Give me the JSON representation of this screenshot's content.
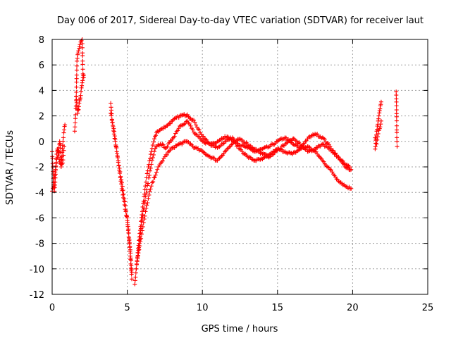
{
  "chart_data": {
    "type": "scatter",
    "title": "Day 006 of 2017, Sidereal Day-to-day VTEC variation (SDTVAR) for receiver laut",
    "xlabel": "GPS time / hours",
    "ylabel": "SDTVAR / TECUs",
    "xlim": [
      0,
      25
    ],
    "ylim": [
      -12,
      8
    ],
    "xticks": [
      0,
      5,
      10,
      15,
      20,
      25
    ],
    "yticks": [
      -12,
      -10,
      -8,
      -6,
      -4,
      -2,
      0,
      2,
      4,
      6,
      8
    ],
    "grid": true,
    "marker": "+",
    "color": "#ff0000",
    "series": [
      {
        "name": "seg1",
        "x": [
          0.0,
          0.05,
          0.1,
          0.15,
          0.2,
          0.25,
          0.3,
          0.35,
          0.4,
          0.45,
          0.5,
          0.55,
          0.6,
          0.65,
          0.7,
          0.75,
          0.8,
          0.85
        ],
        "y": [
          -0.8,
          -2.0,
          -3.5,
          -3.9,
          -3.2,
          -2.0,
          -1.0,
          -0.6,
          -0.9,
          -0.5,
          0.0,
          -0.3,
          -1.8,
          -1.2,
          -0.3,
          0.3,
          0.9,
          1.3
        ]
      },
      {
        "name": "seg2",
        "x": [
          0.0,
          0.1,
          0.2,
          0.3,
          0.4,
          0.5,
          0.6,
          0.7,
          0.8
        ],
        "y": [
          -3.9,
          -3.4,
          -2.4,
          -1.4,
          -1.0,
          -1.6,
          -2.0,
          -1.7,
          -0.4
        ]
      },
      {
        "name": "seg3",
        "x": [
          1.5,
          1.55,
          1.6,
          1.65,
          1.7,
          1.75,
          1.8,
          1.85,
          1.9,
          1.95,
          2.0,
          2.05,
          2.1
        ],
        "y": [
          0.8,
          1.8,
          3.2,
          6.3,
          6.8,
          7.1,
          7.3,
          7.6,
          7.8,
          7.9,
          8.0,
          5.3,
          5.0
        ]
      },
      {
        "name": "seg4",
        "x": [
          1.6,
          1.65,
          1.7,
          1.75,
          1.8,
          1.85,
          1.9,
          1.95,
          2.0,
          2.05,
          2.1
        ],
        "y": [
          3.5,
          2.8,
          2.2,
          2.5,
          3.0,
          3.3,
          3.6,
          4.2,
          4.6,
          5.0,
          5.2
        ]
      },
      {
        "name": "seg5",
        "x": [
          3.9,
          4.0,
          4.2,
          4.4,
          4.6,
          4.8,
          5.0,
          5.1,
          5.2,
          5.3
        ],
        "y": [
          3.0,
          1.5,
          0.0,
          -1.5,
          -3.0,
          -4.5,
          -6.0,
          -7.5,
          -8.5,
          -10.3
        ]
      },
      {
        "name": "seg6",
        "x": [
          3.9,
          4.1,
          4.3,
          4.5,
          4.7,
          4.9,
          5.0,
          5.1,
          5.2,
          5.3
        ],
        "y": [
          2.2,
          1.0,
          -0.8,
          -2.5,
          -4.2,
          -5.5,
          -6.2,
          -7.2,
          -9.0,
          -10.8
        ]
      },
      {
        "name": "seg7",
        "x": [
          5.5,
          5.6,
          5.8,
          6.0,
          6.2,
          6.4,
          6.6,
          6.8,
          7.0,
          7.3,
          7.6,
          8.0,
          8.5,
          9.0,
          9.5,
          10.0,
          10.5,
          11.0,
          11.5,
          12.0,
          12.5,
          13.0,
          13.5,
          14.0,
          14.5,
          15.0,
          15.5,
          16.0,
          16.5,
          17.0,
          17.5,
          18.0,
          18.5,
          19.0,
          19.5,
          19.8
        ],
        "y": [
          -11.2,
          -10.0,
          -7.5,
          -5.5,
          -3.5,
          -2.0,
          -0.8,
          0.2,
          0.8,
          1.0,
          1.2,
          1.6,
          2.0,
          2.1,
          1.5,
          0.4,
          -0.2,
          -0.5,
          0.0,
          0.3,
          -0.3,
          -0.5,
          -0.8,
          -0.6,
          -0.4,
          0.0,
          0.3,
          -0.2,
          -0.5,
          0.2,
          0.6,
          0.3,
          -0.4,
          -1.2,
          -1.8,
          -2.0
        ]
      },
      {
        "name": "seg8",
        "x": [
          5.6,
          5.8,
          6.0,
          6.3,
          6.6,
          6.9,
          7.2,
          7.6,
          8.0,
          8.5,
          9.0,
          9.5,
          10.0,
          10.5,
          11.0,
          11.5,
          12.0,
          12.5,
          13.0,
          13.5,
          14.0,
          14.5,
          15.0,
          15.5,
          16.0,
          16.5,
          17.0,
          17.5,
          18.0,
          18.5,
          19.0,
          19.5,
          19.9
        ],
        "y": [
          -10.0,
          -8.0,
          -6.0,
          -3.8,
          -1.8,
          -0.4,
          -0.2,
          -0.5,
          0.2,
          1.2,
          1.6,
          0.6,
          0.0,
          -0.2,
          0.0,
          0.4,
          0.1,
          -0.6,
          -1.2,
          -1.5,
          -1.4,
          -1.0,
          -0.6,
          -0.8,
          -1.0,
          -0.6,
          -0.4,
          -0.8,
          -1.5,
          -2.2,
          -3.0,
          -3.5,
          -3.7
        ]
      },
      {
        "name": "seg9",
        "x": [
          5.7,
          6.0,
          6.3,
          6.6,
          7.0,
          7.5,
          8.0,
          8.5,
          9.0,
          9.5,
          10.0,
          10.5,
          11.0,
          11.5,
          12.0,
          12.5,
          13.0,
          13.5,
          14.0,
          14.5,
          15.0,
          15.5,
          16.0,
          16.5,
          17.0,
          17.5,
          18.0,
          18.5,
          19.0,
          19.5,
          19.9
        ],
        "y": [
          -9.0,
          -7.0,
          -5.0,
          -3.5,
          -2.2,
          -1.2,
          -0.5,
          -0.2,
          0.0,
          -0.5,
          -0.8,
          -1.2,
          -1.5,
          -0.8,
          -0.2,
          0.2,
          -0.2,
          -0.6,
          -1.0,
          -1.2,
          -0.7,
          -0.2,
          0.2,
          -0.2,
          -0.8,
          -0.6,
          -0.2,
          -0.6,
          -1.2,
          -2.0,
          -2.2
        ]
      },
      {
        "name": "seg10",
        "x": [
          21.5,
          21.55,
          21.6,
          21.65,
          21.7,
          21.75,
          21.8,
          21.85,
          21.9
        ],
        "y": [
          -0.6,
          0.2,
          0.8,
          1.2,
          1.6,
          2.0,
          2.4,
          2.8,
          3.1
        ]
      },
      {
        "name": "seg11",
        "x": [
          21.5,
          21.6,
          21.7,
          21.8,
          21.9
        ],
        "y": [
          0.3,
          -0.2,
          0.6,
          1.0,
          1.6
        ]
      },
      {
        "name": "seg12",
        "x": [
          22.9,
          22.92,
          22.94,
          22.96
        ],
        "y": [
          3.9,
          2.8,
          0.3,
          -0.4
        ]
      }
    ]
  }
}
